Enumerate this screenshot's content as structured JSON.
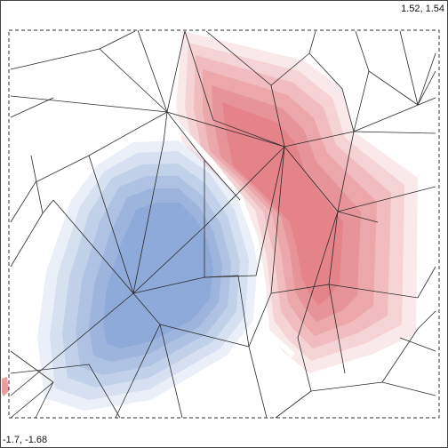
{
  "viewport": {
    "top_right_coords": "1.52, 1.54",
    "bottom_left_coords": "-1.7, -1.68"
  },
  "colors": {
    "negative_field": "#5a82c8",
    "positive_field": "#d94a50",
    "mesh_edges": "#2a2a2a",
    "bounding_box": "#333333",
    "frame": "#444444"
  }
}
